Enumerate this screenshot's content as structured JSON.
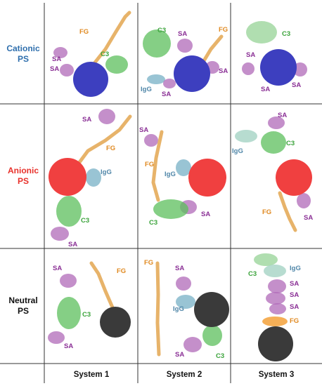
{
  "figure": {
    "rows": [
      {
        "line1": "Cationic",
        "line2": "PS",
        "color": "#2f6fad",
        "np_color": "#3d3fbf"
      },
      {
        "line1": "Anionic",
        "line2": "PS",
        "color": "#e8312b",
        "np_color": "#f04040"
      },
      {
        "line1": "Neutral",
        "line2": "PS",
        "color": "#111111",
        "np_color": "#3a3a3a"
      }
    ],
    "columns": [
      "System 1",
      "System 2",
      "System 3"
    ],
    "protein_colors": {
      "FG": "#e08a22",
      "SA": "#8a2f95",
      "C3": "#3aa33a",
      "IgG": "#4f86a8"
    },
    "cells": [
      [
        [
          "FG",
          "SA",
          "SA",
          "C3"
        ],
        [
          "C3",
          "SA",
          "FG",
          "SA",
          "IgG",
          "SA"
        ],
        [
          "C3",
          "SA",
          "SA",
          "SA"
        ]
      ],
      [
        [
          "SA",
          "FG",
          "IgG",
          "C3",
          "SA"
        ],
        [
          "SA",
          "FG",
          "IgG",
          "SA",
          "C3"
        ],
        [
          "SA",
          "IgG",
          "C3",
          "FG",
          "SA"
        ]
      ],
      [
        [
          "SA",
          "FG",
          "C3",
          "SA"
        ],
        [
          "FG",
          "SA",
          "IgG",
          "SA",
          "C3"
        ],
        [
          "C3",
          "IgG",
          "SA",
          "SA",
          "SA",
          "FG"
        ]
      ]
    ]
  }
}
